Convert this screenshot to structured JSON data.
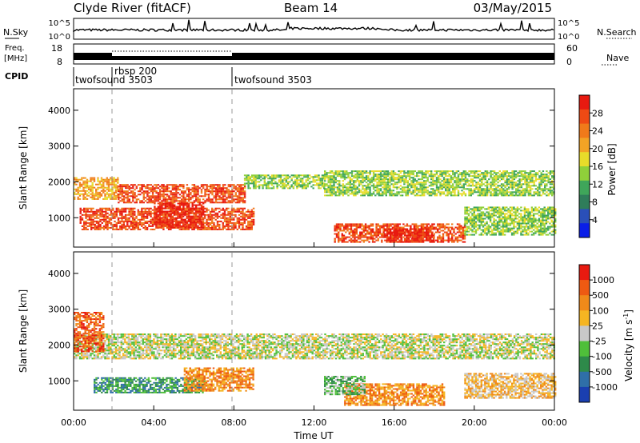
{
  "header": {
    "station": "Clyde River (fitACF)",
    "beam": "Beam 14",
    "date": "03/May/2015"
  },
  "top_panels": {
    "nsky": {
      "label": "N.Sky",
      "right_label": "N.Search",
      "left_ticks": [
        "10^5",
        "10^0"
      ],
      "right_ticks": [
        "10^5",
        "10^0"
      ]
    },
    "freq": {
      "label_lines": [
        "Freq.",
        "[MHz]"
      ],
      "left_ticks": [
        "18",
        "8"
      ],
      "right_ticks": [
        "60",
        "0"
      ],
      "right_label": "Nave"
    },
    "cpid": {
      "label": "CPID",
      "segments": [
        {
          "name": "twofsound 3503",
          "start_hour": 0,
          "end_hour": 1.9
        },
        {
          "name": "rbsp 200",
          "start_hour": 1.9,
          "end_hour": 8.0
        },
        {
          "name": "twofsound 3503",
          "start_hour": 8.0,
          "end_hour": 24
        }
      ]
    }
  },
  "chart_data": [
    {
      "type": "heatmap",
      "panel": "power",
      "ylabel": "Slant Range [km]",
      "xlabel": "Time UT",
      "x_ticks": [
        "00:00",
        "04:00",
        "08:00",
        "12:00",
        "16:00",
        "20:00",
        "00:00"
      ],
      "xlim_hours": [
        0,
        24
      ],
      "y_ticks": [
        1000,
        2000,
        3000,
        4000
      ],
      "ylim": [
        180,
        4600
      ],
      "colorbar": {
        "label": "Power [dB]",
        "ticks": [
          "4",
          "8",
          "12",
          "16",
          "20",
          "24",
          "28"
        ],
        "colors": [
          "#0a1ee8",
          "#2a4fb8",
          "#2f7d5a",
          "#3fa65a",
          "#8fd03a",
          "#e8dc2a",
          "#f2a325",
          "#f07a1a",
          "#ee4a14",
          "#e81a10"
        ]
      },
      "bands": [
        {
          "t0": 0,
          "t1": 2.2,
          "r0": 1500,
          "r1": 2100,
          "level": 6
        },
        {
          "t0": 2.2,
          "t1": 8.5,
          "r0": 1400,
          "r1": 1900,
          "level": 8
        },
        {
          "t0": 8.5,
          "t1": 12.5,
          "r0": 1800,
          "r1": 2200,
          "level": 4
        },
        {
          "t0": 12.5,
          "t1": 24,
          "r0": 1600,
          "r1": 2300,
          "level": 4
        },
        {
          "t0": 0.3,
          "t1": 9.0,
          "r0": 650,
          "r1": 1250,
          "level": 8
        },
        {
          "t0": 4.0,
          "t1": 6.5,
          "r0": 700,
          "r1": 1400,
          "level": 9
        },
        {
          "t0": 13.0,
          "t1": 19.5,
          "r0": 300,
          "r1": 800,
          "level": 8
        },
        {
          "t0": 15.5,
          "t1": 18.0,
          "r0": 300,
          "r1": 700,
          "level": 9
        },
        {
          "t0": 19.5,
          "t1": 24,
          "r0": 500,
          "r1": 1300,
          "level": 4
        }
      ]
    },
    {
      "type": "heatmap",
      "panel": "velocity",
      "ylabel": "Slant Range [km]",
      "xlabel": "Time UT",
      "x_ticks": [
        "00:00",
        "04:00",
        "08:00",
        "12:00",
        "16:00",
        "20:00",
        "00:00"
      ],
      "xlim_hours": [
        0,
        24
      ],
      "y_ticks": [
        1000,
        2000,
        3000,
        4000
      ],
      "ylim": [
        180,
        4600
      ],
      "colorbar": {
        "label_parts": [
          "Velocity [m s",
          "-1",
          "]"
        ],
        "ticks": [
          "1000",
          "500",
          "100",
          "25",
          "-25",
          "-100",
          "-500",
          "-1000"
        ],
        "colors": [
          "#1a3fb0",
          "#2f6fa8",
          "#2e8a4a",
          "#4fbf3a",
          "#c8c8c8",
          "#f5b522",
          "#f08a1a",
          "#ee5a12",
          "#e81a10"
        ]
      },
      "bands": [
        {
          "t0": 0,
          "t1": 24,
          "r0": 1600,
          "r1": 2300,
          "level": 4
        },
        {
          "t0": 1.0,
          "t1": 6.5,
          "r0": 650,
          "r1": 1100,
          "level": 2
        },
        {
          "t0": 5.5,
          "t1": 9.0,
          "r0": 700,
          "r1": 1350,
          "level": 6
        },
        {
          "t0": 13.5,
          "t1": 18.5,
          "r0": 300,
          "r1": 900,
          "level": 6
        },
        {
          "t0": 12.5,
          "t1": 14.5,
          "r0": 600,
          "r1": 1100,
          "level": 3
        },
        {
          "t0": 19.5,
          "t1": 24,
          "r0": 500,
          "r1": 1200,
          "level": 5
        },
        {
          "t0": 0,
          "t1": 1.5,
          "r0": 1800,
          "r1": 2900,
          "level": 7
        }
      ]
    }
  ]
}
